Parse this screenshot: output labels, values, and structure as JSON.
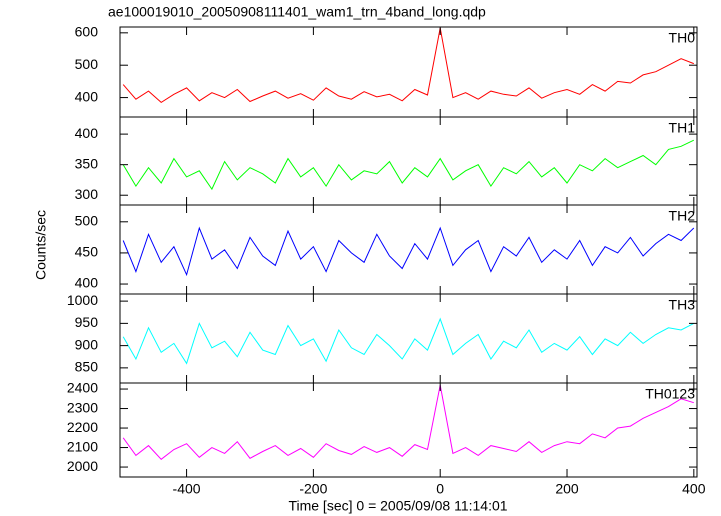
{
  "chart_data": [
    {
      "type": "line",
      "title": "ae100019010_20050908111401_wam1_trn_4band_long.qdp",
      "x": [
        -500,
        -480,
        -460,
        -440,
        -420,
        -400,
        -380,
        -360,
        -340,
        -320,
        -300,
        -280,
        -260,
        -240,
        -220,
        -200,
        -180,
        -160,
        -140,
        -120,
        -100,
        -80,
        -60,
        -40,
        -20,
        0,
        20,
        40,
        60,
        80,
        100,
        120,
        140,
        160,
        180,
        200,
        220,
        240,
        260,
        280,
        300,
        320,
        340,
        360,
        380,
        400
      ],
      "series": [
        {
          "name": "TH0",
          "color": "#ff0000",
          "values": [
            440,
            395,
            420,
            385,
            410,
            430,
            390,
            415,
            400,
            425,
            388,
            405,
            420,
            398,
            412,
            392,
            430,
            405,
            395,
            418,
            402,
            410,
            390,
            425,
            408,
            615,
            400,
            415,
            395,
            420,
            410,
            405,
            430,
            398,
            415,
            425,
            410,
            440,
            420,
            450,
            445,
            470,
            480,
            500,
            520,
            505
          ]
        }
      ],
      "xlim": [
        -505,
        405
      ],
      "ylim": [
        340,
        618
      ],
      "yticks": [
        400,
        500,
        600
      ]
    },
    {
      "type": "line",
      "x": [
        -500,
        -480,
        -460,
        -440,
        -420,
        -400,
        -380,
        -360,
        -340,
        -320,
        -300,
        -280,
        -260,
        -240,
        -220,
        -200,
        -180,
        -160,
        -140,
        -120,
        -100,
        -80,
        -60,
        -40,
        -20,
        0,
        20,
        40,
        60,
        80,
        100,
        120,
        140,
        160,
        180,
        200,
        220,
        240,
        260,
        280,
        300,
        320,
        340,
        360,
        380,
        400
      ],
      "series": [
        {
          "name": "TH1",
          "color": "#00ff00",
          "values": [
            350,
            315,
            345,
            320,
            360,
            330,
            340,
            310,
            355,
            325,
            345,
            335,
            320,
            360,
            330,
            345,
            315,
            350,
            325,
            340,
            335,
            355,
            320,
            345,
            330,
            360,
            325,
            340,
            350,
            315,
            345,
            335,
            355,
            330,
            345,
            320,
            350,
            340,
            360,
            345,
            355,
            365,
            350,
            375,
            380,
            390
          ]
        }
      ],
      "xlim": [
        -505,
        405
      ],
      "ylim": [
        284,
        428
      ],
      "yticks": [
        300,
        350,
        400
      ]
    },
    {
      "type": "line",
      "ylabel": "Counts/sec",
      "x": [
        -500,
        -480,
        -460,
        -440,
        -420,
        -400,
        -380,
        -360,
        -340,
        -320,
        -300,
        -280,
        -260,
        -240,
        -220,
        -200,
        -180,
        -160,
        -140,
        -120,
        -100,
        -80,
        -60,
        -40,
        -20,
        0,
        20,
        40,
        60,
        80,
        100,
        120,
        140,
        160,
        180,
        200,
        220,
        240,
        260,
        280,
        300,
        320,
        340,
        360,
        380,
        400
      ],
      "series": [
        {
          "name": "TH2",
          "color": "#0000ff",
          "values": [
            470,
            420,
            480,
            435,
            460,
            415,
            490,
            440,
            455,
            425,
            475,
            445,
            430,
            485,
            440,
            460,
            420,
            470,
            450,
            435,
            480,
            445,
            425,
            465,
            440,
            490,
            430,
            455,
            470,
            420,
            460,
            445,
            475,
            435,
            455,
            440,
            470,
            430,
            460,
            450,
            475,
            445,
            465,
            480,
            470,
            490
          ]
        }
      ],
      "xlim": [
        -505,
        405
      ],
      "ylim": [
        384,
        527
      ],
      "yticks": [
        400,
        450,
        500
      ]
    },
    {
      "type": "line",
      "x": [
        -500,
        -480,
        -460,
        -440,
        -420,
        -400,
        -380,
        -360,
        -340,
        -320,
        -300,
        -280,
        -260,
        -240,
        -220,
        -200,
        -180,
        -160,
        -140,
        -120,
        -100,
        -80,
        -60,
        -40,
        -20,
        0,
        20,
        40,
        60,
        80,
        100,
        120,
        140,
        160,
        180,
        200,
        220,
        240,
        260,
        280,
        300,
        320,
        340,
        360,
        380,
        400
      ],
      "series": [
        {
          "name": "TH3",
          "color": "#00ffff",
          "values": [
            920,
            870,
            940,
            885,
            905,
            860,
            950,
            895,
            910,
            875,
            930,
            890,
            880,
            945,
            900,
            915,
            865,
            935,
            895,
            880,
            925,
            900,
            870,
            915,
            890,
            960,
            880,
            905,
            925,
            870,
            910,
            895,
            935,
            885,
            905,
            890,
            920,
            880,
            915,
            900,
            930,
            905,
            925,
            940,
            935,
            950
          ]
        }
      ],
      "xlim": [
        -505,
        405
      ],
      "ylim": [
        816,
        1016
      ],
      "yticks": [
        850,
        900,
        950,
        1000
      ]
    },
    {
      "type": "line",
      "xlabel": "Time [sec] 0 = 2005/09/08 11:14:01",
      "x": [
        -500,
        -480,
        -460,
        -440,
        -420,
        -400,
        -380,
        -360,
        -340,
        -320,
        -300,
        -280,
        -260,
        -240,
        -220,
        -200,
        -180,
        -160,
        -140,
        -120,
        -100,
        -80,
        -60,
        -40,
        -20,
        0,
        20,
        40,
        60,
        80,
        100,
        120,
        140,
        160,
        180,
        200,
        220,
        240,
        260,
        280,
        300,
        320,
        340,
        360,
        380,
        400
      ],
      "series": [
        {
          "name": "TH0123",
          "color": "#ff00ff",
          "values": [
            2150,
            2060,
            2110,
            2040,
            2090,
            2120,
            2050,
            2100,
            2070,
            2130,
            2045,
            2080,
            2110,
            2060,
            2095,
            2050,
            2120,
            2085,
            2065,
            2105,
            2075,
            2100,
            2055,
            2115,
            2090,
            2420,
            2070,
            2100,
            2060,
            2110,
            2095,
            2080,
            2130,
            2075,
            2110,
            2130,
            2120,
            2170,
            2150,
            2200,
            2210,
            2250,
            2280,
            2310,
            2350,
            2330
          ]
        }
      ],
      "xlim": [
        -505,
        405
      ],
      "ylim": [
        1949,
        2431
      ],
      "yticks": [
        2000,
        2100,
        2200,
        2300,
        2400
      ],
      "xticks": [
        -400,
        -200,
        0,
        200,
        400
      ]
    }
  ]
}
